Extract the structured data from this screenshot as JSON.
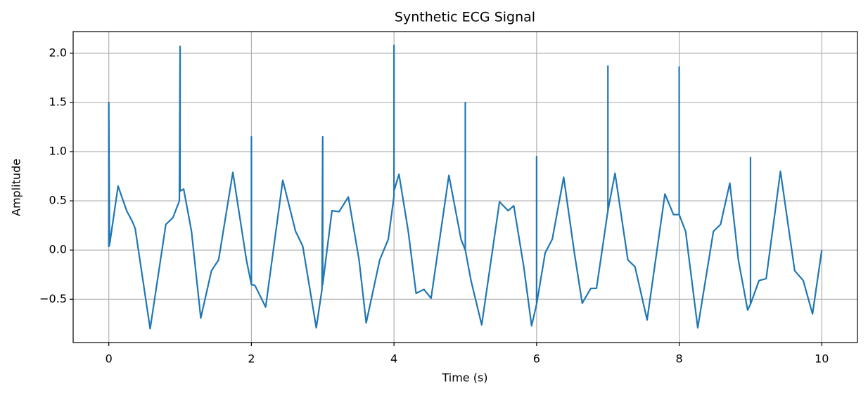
{
  "chart_data": {
    "type": "line",
    "title": "Synthetic ECG Signal",
    "x_label": "Time (s)",
    "y_label": "Amplitude",
    "xlim": [
      -0.5,
      10.5
    ],
    "ylim": [
      -0.94,
      2.22
    ],
    "xticks": [
      0,
      2,
      4,
      6,
      8,
      10
    ],
    "yticks": [
      {
        "value": -0.5,
        "label": "−0.5"
      },
      {
        "value": 0,
        "label": "0.0"
      },
      {
        "value": 0.5,
        "label": "0.5"
      },
      {
        "value": 1,
        "label": "1.0"
      },
      {
        "value": 1.5,
        "label": "1.5"
      },
      {
        "value": 2,
        "label": "2.0"
      }
    ],
    "grid": true,
    "series": [
      {
        "color": "#1f77b4",
        "x": [
          0,
          0,
          0.01,
          0.13,
          0.25,
          0.33,
          0.37,
          0.58,
          0.8,
          0.9,
          0.99,
          1.0,
          1.0,
          1.05,
          1.16,
          1.29,
          1.44,
          1.54,
          1.74,
          1.93,
          2.0,
          2.0,
          2.0,
          2.05,
          2.2,
          2.44,
          2.62,
          2.72,
          2.91,
          2.99,
          3.0,
          3.0,
          3.13,
          3.23,
          3.36,
          3.51,
          3.61,
          3.8,
          3.92,
          4.0,
          4.0,
          4.0,
          4.07,
          4.2,
          4.31,
          4.42,
          4.52,
          4.77,
          4.94,
          5.0,
          5.0,
          5.0,
          5.08,
          5.23,
          5.48,
          5.6,
          5.68,
          5.82,
          5.93,
          6.0,
          6.0,
          6.0,
          6.12,
          6.22,
          6.38,
          6.53,
          6.64,
          6.76,
          6.84,
          7.0,
          7.0,
          7.0,
          7.1,
          7.28,
          7.38,
          7.55,
          7.8,
          7.92,
          8.0,
          8.0,
          8.0,
          8.09,
          8.26,
          8.48,
          8.58,
          8.71,
          8.83,
          8.96,
          9.0,
          9.0,
          9.0,
          9.12,
          9.22,
          9.42,
          9.62,
          9.74,
          9.87,
          10.0
        ],
        "values": [
          0.03,
          1.5,
          0.05,
          0.65,
          0.4,
          0.29,
          0.22,
          -0.8,
          0.26,
          0.33,
          0.5,
          2.07,
          0.6,
          0.62,
          0.19,
          -0.69,
          -0.21,
          -0.1,
          0.79,
          -0.1,
          -0.35,
          1.15,
          -0.35,
          -0.36,
          -0.58,
          0.71,
          0.19,
          0.04,
          -0.79,
          -0.4,
          1.15,
          -0.35,
          0.4,
          0.39,
          0.54,
          -0.1,
          -0.74,
          -0.1,
          0.11,
          0.55,
          2.08,
          0.6,
          0.77,
          0.19,
          -0.44,
          -0.4,
          -0.49,
          0.76,
          0.11,
          0.0,
          1.5,
          0.0,
          -0.31,
          -0.76,
          0.49,
          0.4,
          0.45,
          -0.17,
          -0.77,
          -0.55,
          0.95,
          -0.55,
          -0.03,
          0.11,
          0.74,
          -0.03,
          -0.54,
          -0.39,
          -0.39,
          0.4,
          1.87,
          0.4,
          0.78,
          -0.1,
          -0.17,
          -0.71,
          0.57,
          0.36,
          0.36,
          1.86,
          0.36,
          0.19,
          -0.79,
          0.19,
          0.26,
          0.68,
          -0.1,
          -0.61,
          -0.55,
          0.94,
          -0.55,
          -0.31,
          -0.29,
          0.8,
          -0.21,
          -0.31,
          -0.65,
          0.0
        ]
      }
    ]
  }
}
